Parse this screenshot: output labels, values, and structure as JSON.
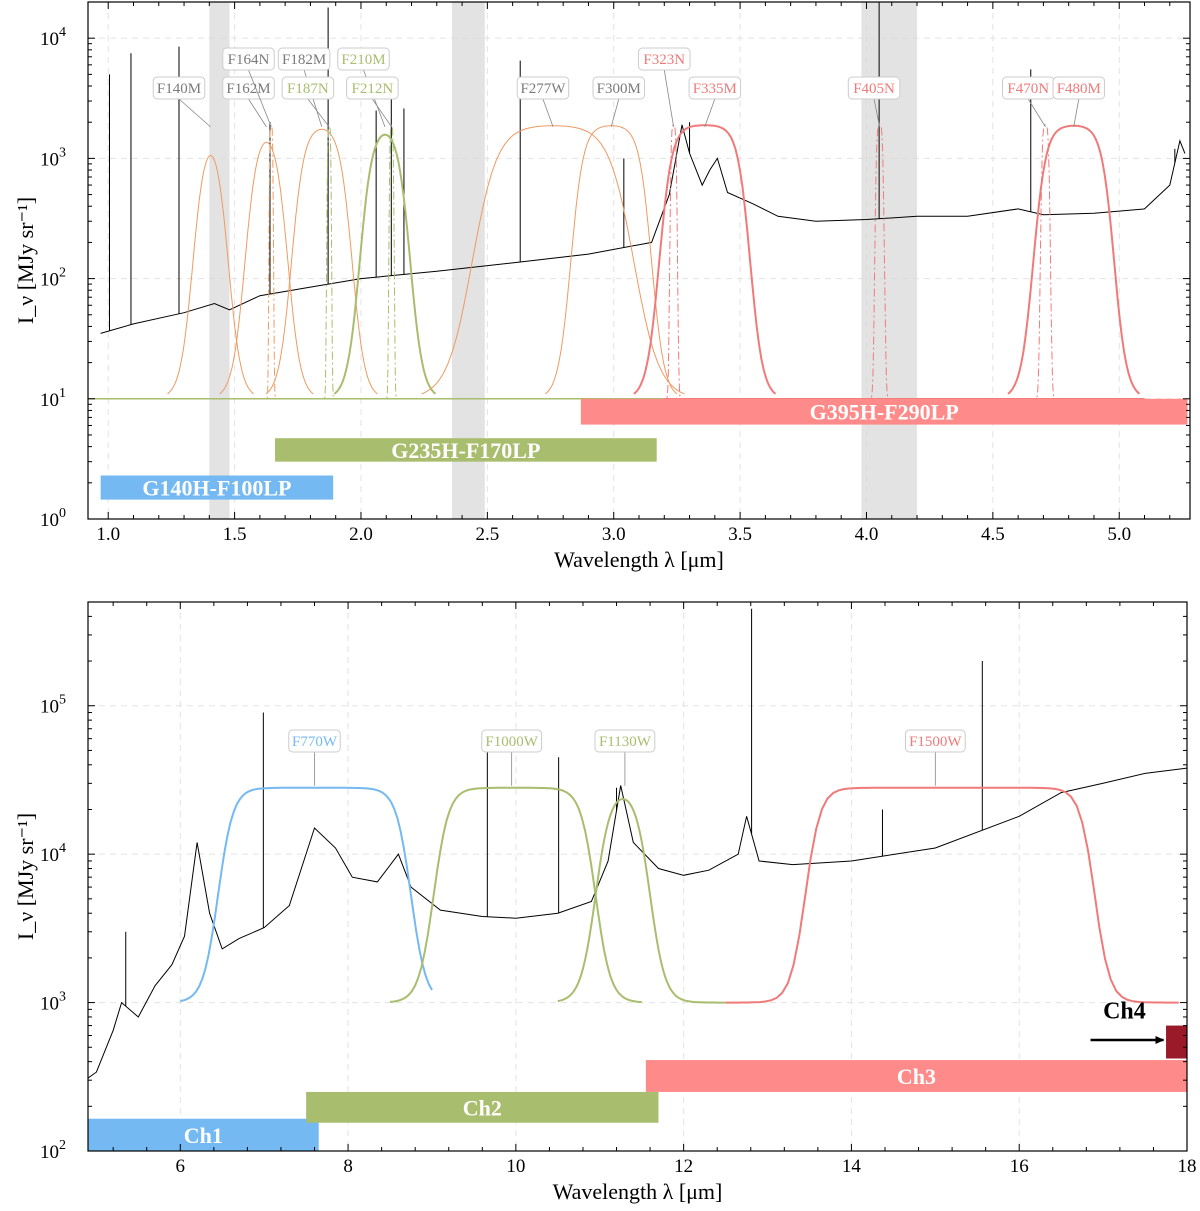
{
  "colors": {
    "blue": "#74b9f2",
    "green": "#a8bd6e",
    "red": "#f07a7a",
    "red_band": "#ff8a8a",
    "orange": "#ef9a62",
    "gray_label": "#7a7a7a",
    "dark_red": "#9a1a2a",
    "gray_shade": "#d9d9d9"
  },
  "chart_data": [
    {
      "type": "line",
      "panel": "top",
      "xlabel": "Wavelength λ [μm]",
      "ylabel": "I_ν [MJy sr⁻¹]",
      "xlim": [
        0.92,
        5.28
      ],
      "ylim": [
        1,
        20000
      ],
      "yscale": "log",
      "x_ticks": [
        1.0,
        1.5,
        2.0,
        2.5,
        3.0,
        3.5,
        4.0,
        4.5,
        5.0
      ],
      "x_tick_labels": [
        "1.0",
        "1.5",
        "2.0",
        "2.5",
        "3.0",
        "3.5",
        "4.0",
        "4.5",
        "5.0"
      ],
      "y_tick_labels": [
        {
          "base": "10",
          "exp": "0",
          "value": 1
        },
        {
          "base": "10",
          "exp": "1",
          "value": 10
        },
        {
          "base": "10",
          "exp": "2",
          "value": 100
        },
        {
          "base": "10",
          "exp": "3",
          "value": 1000
        },
        {
          "base": "10",
          "exp": "4",
          "value": 10000
        }
      ],
      "shaded_regions": [
        [
          1.4,
          1.48
        ],
        [
          2.36,
          2.49
        ],
        [
          3.98,
          4.2
        ]
      ],
      "spectrum": {
        "continuum": [
          [
            0.97,
            35
          ],
          [
            1.1,
            42
          ],
          [
            1.3,
            52
          ],
          [
            1.42,
            62
          ],
          [
            1.48,
            55
          ],
          [
            1.6,
            72
          ],
          [
            1.8,
            85
          ],
          [
            2.0,
            100
          ],
          [
            2.3,
            115
          ],
          [
            2.6,
            135
          ],
          [
            2.9,
            160
          ],
          [
            3.15,
            200
          ],
          [
            3.22,
            500
          ],
          [
            3.27,
            1900
          ],
          [
            3.3,
            1100
          ],
          [
            3.35,
            600
          ],
          [
            3.38,
            800
          ],
          [
            3.41,
            1000
          ],
          [
            3.45,
            520
          ],
          [
            3.55,
            420
          ],
          [
            3.65,
            330
          ],
          [
            3.8,
            300
          ],
          [
            4.0,
            310
          ],
          [
            4.2,
            330
          ],
          [
            4.4,
            330
          ],
          [
            4.6,
            380
          ],
          [
            4.7,
            340
          ],
          [
            4.9,
            350
          ],
          [
            5.1,
            380
          ],
          [
            5.2,
            600
          ],
          [
            5.24,
            1400
          ],
          [
            5.26,
            1100
          ]
        ],
        "lines": [
          [
            1.005,
            5000
          ],
          [
            1.09,
            7500
          ],
          [
            1.28,
            8500
          ],
          [
            1.64,
            2000
          ],
          [
            1.87,
            18000
          ],
          [
            2.06,
            2500
          ],
          [
            2.12,
            4000
          ],
          [
            2.17,
            2600
          ],
          [
            2.63,
            6500
          ],
          [
            3.04,
            1000
          ],
          [
            3.3,
            2000
          ],
          [
            4.05,
            20000
          ],
          [
            4.65,
            5500
          ],
          [
            5.22,
            1200
          ]
        ]
      },
      "filters": [
        {
          "name": "F140M",
          "group": "gray",
          "kind": "medium",
          "center": 1.405,
          "halfwidth": 0.07
        },
        {
          "name": "F162M",
          "group": "gray",
          "kind": "medium",
          "center": 1.626,
          "halfwidth": 0.085
        },
        {
          "name": "F164N",
          "group": "gray",
          "kind": "narrow",
          "center": 1.645,
          "halfwidth": 0.012
        },
        {
          "name": "F182M",
          "group": "gray",
          "kind": "medium",
          "center": 1.845,
          "halfwidth": 0.12
        },
        {
          "name": "F187N",
          "group": "green",
          "kind": "narrow",
          "center": 1.874,
          "halfwidth": 0.013
        },
        {
          "name": "F210M",
          "group": "green",
          "kind": "medium",
          "center": 2.095,
          "halfwidth": 0.1
        },
        {
          "name": "F212N",
          "group": "green",
          "kind": "narrow",
          "center": 2.121,
          "halfwidth": 0.014
        },
        {
          "name": "F277W",
          "group": "gray",
          "kind": "wide",
          "center": 2.76,
          "halfwidth": 0.32
        },
        {
          "name": "F300M",
          "group": "gray",
          "kind": "medium",
          "center": 2.99,
          "halfwidth": 0.16
        },
        {
          "name": "F323N",
          "group": "red",
          "kind": "narrow",
          "center": 3.237,
          "halfwidth": 0.02
        },
        {
          "name": "F335M",
          "group": "red",
          "kind": "medium",
          "center": 3.36,
          "halfwidth": 0.18
        },
        {
          "name": "F405N",
          "group": "red",
          "kind": "narrow",
          "center": 4.052,
          "halfwidth": 0.025
        },
        {
          "name": "F470N",
          "group": "red",
          "kind": "narrow",
          "center": 4.708,
          "halfwidth": 0.026
        },
        {
          "name": "F480M",
          "group": "red",
          "kind": "medium",
          "center": 4.82,
          "halfwidth": 0.16
        }
      ],
      "filter_floor": 10,
      "filter_peak": 1900,
      "bands": [
        {
          "name": "G140H-F100LP",
          "color": "blue",
          "xmin": 0.97,
          "xmax": 1.89,
          "y_low": 1.45,
          "y_high": 2.3
        },
        {
          "name": "G235H-F170LP",
          "color": "green",
          "xmin": 1.66,
          "xmax": 3.17,
          "y_low": 3.0,
          "y_high": 4.7
        },
        {
          "name": "G395H-F290LP",
          "color": "red_band",
          "xmin": 2.87,
          "xmax": 5.27,
          "y_low": 6.1,
          "y_high": 10.0
        }
      ]
    },
    {
      "type": "line",
      "panel": "bottom",
      "xlabel": "Wavelength λ [μm]",
      "ylabel": "I_ν [MJy sr⁻¹]",
      "xlim": [
        4.9,
        18.0
      ],
      "ylim": [
        100,
        500000
      ],
      "yscale": "log",
      "x_ticks": [
        6,
        8,
        10,
        12,
        14,
        16,
        18
      ],
      "x_tick_labels": [
        "6",
        "8",
        "10",
        "12",
        "14",
        "16",
        "18"
      ],
      "y_tick_labels": [
        {
          "base": "10",
          "exp": "2",
          "value": 100
        },
        {
          "base": "10",
          "exp": "3",
          "value": 1000
        },
        {
          "base": "10",
          "exp": "4",
          "value": 10000
        },
        {
          "base": "10",
          "exp": "5",
          "value": 100000
        }
      ],
      "spectrum": {
        "continuum": [
          [
            4.9,
            310
          ],
          [
            5.0,
            340
          ],
          [
            5.2,
            650
          ],
          [
            5.3,
            1000
          ],
          [
            5.5,
            800
          ],
          [
            5.7,
            1300
          ],
          [
            5.9,
            1800
          ],
          [
            6.05,
            2800
          ],
          [
            6.2,
            12000
          ],
          [
            6.35,
            4000
          ],
          [
            6.5,
            2300
          ],
          [
            6.7,
            2700
          ],
          [
            7.0,
            3200
          ],
          [
            7.3,
            4500
          ],
          [
            7.6,
            15000
          ],
          [
            7.85,
            11000
          ],
          [
            8.05,
            7000
          ],
          [
            8.35,
            6500
          ],
          [
            8.6,
            10000
          ],
          [
            8.75,
            6000
          ],
          [
            9.1,
            4200
          ],
          [
            9.6,
            3800
          ],
          [
            10.0,
            3700
          ],
          [
            10.5,
            4000
          ],
          [
            10.9,
            4800
          ],
          [
            11.1,
            9000
          ],
          [
            11.25,
            29000
          ],
          [
            11.4,
            12000
          ],
          [
            11.7,
            8000
          ],
          [
            12.0,
            7200
          ],
          [
            12.3,
            7800
          ],
          [
            12.65,
            10000
          ],
          [
            12.75,
            18000
          ],
          [
            12.9,
            9000
          ],
          [
            13.3,
            8500
          ],
          [
            14.0,
            9000
          ],
          [
            15.0,
            11000
          ],
          [
            16.0,
            18000
          ],
          [
            16.5,
            26000
          ],
          [
            17.0,
            30000
          ],
          [
            17.5,
            35000
          ],
          [
            18.0,
            38000
          ]
        ],
        "lines": [
          [
            5.35,
            3000
          ],
          [
            6.99,
            90000
          ],
          [
            9.66,
            60000
          ],
          [
            10.51,
            45000
          ],
          [
            11.2,
            28000
          ],
          [
            12.81,
            450000
          ],
          [
            15.56,
            200000
          ],
          [
            14.37,
            20000
          ]
        ]
      },
      "filters": [
        {
          "name": "F770W",
          "color": "blue",
          "lo": 6.45,
          "hi": 8.75,
          "start": 6.0,
          "end": 9.0,
          "center": 7.6
        },
        {
          "name": "F1000W",
          "color": "green",
          "lo": 9.02,
          "hi": 10.95,
          "start": 8.5,
          "end": 11.5,
          "center": 9.95
        },
        {
          "name": "F1130W",
          "color": "green",
          "lo": 10.95,
          "hi": 11.6,
          "start": 10.5,
          "end": 12.5,
          "center": 11.3
        },
        {
          "name": "F1500W",
          "color": "red",
          "lo": 13.45,
          "hi": 16.9,
          "start": 12.5,
          "end": 17.9,
          "center": 15.0
        }
      ],
      "filter_floor": 1000,
      "filter_peak": 28000,
      "bands": [
        {
          "name": "Ch1",
          "color": "blue",
          "xmin": 4.9,
          "xmax": 7.65,
          "y_low": 100,
          "y_high": 165
        },
        {
          "name": "Ch2",
          "color": "green",
          "xmin": 7.5,
          "xmax": 11.7,
          "y_low": 155,
          "y_high": 250
        },
        {
          "name": "Ch3",
          "color": "red_band",
          "xmin": 11.55,
          "xmax": 18.0,
          "y_low": 250,
          "y_high": 410
        },
        {
          "name": "Ch4",
          "color": "dark_red",
          "xmin": 17.75,
          "xmax": 18.0,
          "y_low": 420,
          "y_high": 700
        }
      ],
      "ch4_label": "Ch4"
    }
  ]
}
